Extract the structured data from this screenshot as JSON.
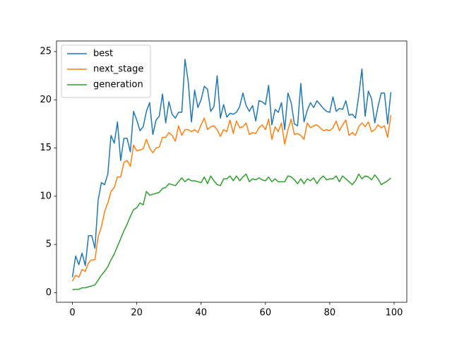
{
  "chart_data": {
    "type": "line",
    "x": [
      0,
      1,
      2,
      3,
      4,
      5,
      6,
      7,
      8,
      9,
      10,
      11,
      12,
      13,
      14,
      15,
      16,
      17,
      18,
      19,
      20,
      21,
      22,
      23,
      24,
      25,
      26,
      27,
      28,
      29,
      30,
      31,
      32,
      33,
      34,
      35,
      36,
      37,
      38,
      39,
      40,
      41,
      42,
      43,
      44,
      45,
      46,
      47,
      48,
      49,
      50,
      51,
      52,
      53,
      54,
      55,
      56,
      57,
      58,
      59,
      60,
      61,
      62,
      63,
      64,
      65,
      66,
      67,
      68,
      69,
      70,
      71,
      72,
      73,
      74,
      75,
      76,
      77,
      78,
      79,
      80,
      81,
      82,
      83,
      84,
      85,
      86,
      87,
      88,
      89,
      90,
      91,
      92,
      93,
      94,
      95,
      96,
      97,
      98,
      99
    ],
    "series": [
      {
        "name": "best",
        "color": "#1f77b4",
        "values": [
          1.6,
          3.8,
          2.9,
          4.1,
          2.8,
          5.9,
          5.9,
          4.6,
          9.6,
          11.4,
          11.2,
          12.3,
          16.3,
          15.5,
          17.7,
          13.7,
          16.0,
          16.0,
          14.6,
          18.8,
          17.9,
          16.8,
          17.2,
          18.8,
          19.7,
          16.4,
          17.9,
          18.3,
          20.6,
          17.6,
          19.8,
          18.5,
          18.1,
          18.7,
          18.7,
          24.2,
          21.9,
          17.7,
          21.0,
          19.2,
          20.0,
          21.4,
          21.1,
          18.8,
          19.3,
          22.5,
          18.1,
          19.5,
          18.2,
          18.6,
          18.5,
          18.7,
          19.3,
          20.7,
          19.4,
          18.8,
          19.4,
          17.8,
          19.9,
          19.8,
          19.5,
          21.5,
          17.4,
          19.0,
          18.7,
          19.7,
          16.9,
          20.7,
          19.7,
          17.5,
          17.3,
          21.7,
          17.7,
          18.9,
          19.7,
          19.2,
          19.9,
          19.5,
          19.1,
          18.8,
          18.7,
          20.3,
          18.8,
          19.1,
          19.0,
          19.9,
          18.4,
          18.5,
          18.1,
          20.4,
          23.2,
          18.3,
          20.9,
          20.1,
          17.6,
          19.3,
          20.7,
          20.7,
          17.5,
          20.8
        ]
      },
      {
        "name": "next_stage",
        "color": "#ff7f0e",
        "values": [
          1.2,
          1.8,
          1.6,
          2.4,
          2.2,
          3.1,
          3.4,
          3.4,
          5.8,
          6.8,
          8.4,
          9.3,
          10.5,
          10.9,
          12.0,
          12.0,
          13.5,
          13.7,
          13.1,
          15.3,
          14.7,
          14.8,
          14.9,
          15.9,
          15.0,
          14.5,
          15.0,
          15.1,
          16.1,
          16.1,
          16.6,
          16.3,
          15.7,
          17.3,
          16.3,
          16.9,
          16.9,
          16.7,
          16.9,
          16.6,
          17.4,
          18.1,
          16.9,
          17.2,
          17.3,
          16.9,
          16.2,
          16.9,
          16.7,
          17.9,
          16.5,
          17.8,
          17.1,
          17.2,
          17.6,
          16.4,
          16.6,
          16.5,
          17.1,
          17.4,
          16.9,
          18.0,
          15.9,
          17.2,
          16.7,
          17.6,
          15.4,
          16.9,
          18.0,
          16.4,
          16.5,
          16.3,
          15.9,
          17.6,
          17.1,
          17.3,
          17.4,
          17.1,
          16.8,
          16.9,
          16.8,
          17.1,
          17.8,
          16.8,
          17.4,
          17.9,
          16.3,
          16.6,
          16.3,
          17.2,
          17.6,
          17.2,
          17.7,
          16.7,
          16.9,
          17.4,
          17.1,
          17.3,
          16.1,
          18.4
        ]
      },
      {
        "name": "generation",
        "color": "#2ca02c",
        "values": [
          0.3,
          0.35,
          0.35,
          0.5,
          0.5,
          0.6,
          0.7,
          0.8,
          1.3,
          1.8,
          2.2,
          2.7,
          3.4,
          4.0,
          4.8,
          5.6,
          6.4,
          7.1,
          7.9,
          8.6,
          8.8,
          9.3,
          9.1,
          10.5,
          10.1,
          10.2,
          10.3,
          10.4,
          10.8,
          10.9,
          11.3,
          11.2,
          11.1,
          11.5,
          11.9,
          11.5,
          11.8,
          11.6,
          11.6,
          11.5,
          11.4,
          12.0,
          11.3,
          12.1,
          11.6,
          11.2,
          11.1,
          11.8,
          11.8,
          12.1,
          11.6,
          12.1,
          11.6,
          12.0,
          12.3,
          11.5,
          11.8,
          11.7,
          11.9,
          11.7,
          11.6,
          12.0,
          11.5,
          11.8,
          11.5,
          11.5,
          11.5,
          12.1,
          12.0,
          11.7,
          11.3,
          11.8,
          11.3,
          11.8,
          11.6,
          11.9,
          11.3,
          11.8,
          12.1,
          11.7,
          11.8,
          11.8,
          12.1,
          11.5,
          12.1,
          11.8,
          11.5,
          11.2,
          11.6,
          12.3,
          11.8,
          12.1,
          12.0,
          11.7,
          12.2,
          11.8,
          11.2,
          11.4,
          11.6,
          11.9
        ]
      }
    ],
    "xlim": [
      -4.95,
      103.95
    ],
    "ylim": [
      -1.0,
      26.1
    ],
    "xticks": [
      0,
      20,
      40,
      60,
      80,
      100
    ],
    "yticks": [
      0,
      5,
      10,
      15,
      20,
      25
    ],
    "legend": "upper left"
  }
}
